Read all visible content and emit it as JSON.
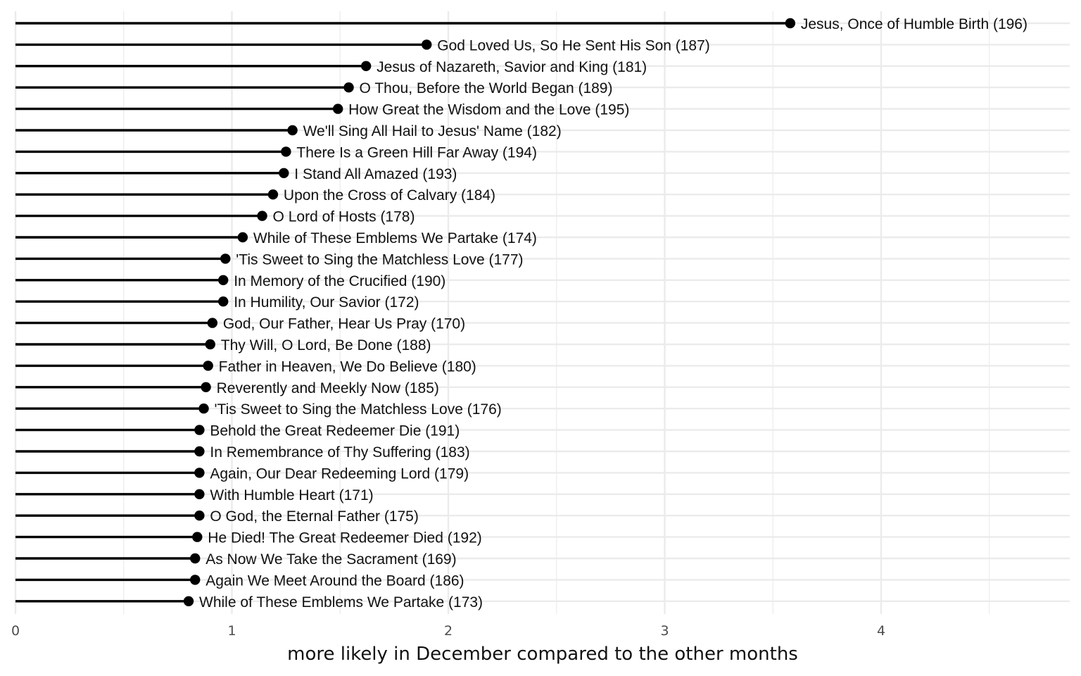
{
  "chart_data": {
    "type": "lollipop",
    "orientation": "horizontal",
    "xlabel": "more likely in December compared to the other months",
    "ylabel": "",
    "title": "",
    "xlim": [
      0,
      4.88
    ],
    "x_ticks": [
      0,
      1,
      2,
      3,
      4
    ],
    "x_tick_labels": [
      "0",
      "1",
      "2",
      "3",
      "4"
    ],
    "grid": true,
    "legend": "none",
    "colors": {
      "stem": "#000000",
      "point": "#000000",
      "grid": "#ebebeb",
      "background": "#ffffff"
    },
    "items": [
      {
        "label": "Jesus, Once of Humble Birth (196)",
        "value": 3.58
      },
      {
        "label": "God Loved Us, So He Sent His Son (187)",
        "value": 1.9
      },
      {
        "label": "Jesus of Nazareth, Savior and King (181)",
        "value": 1.62
      },
      {
        "label": "O Thou, Before the World Began (189)",
        "value": 1.54
      },
      {
        "label": "How Great the Wisdom and the Love (195)",
        "value": 1.49
      },
      {
        "label": "We'll Sing All Hail to Jesus' Name (182)",
        "value": 1.28
      },
      {
        "label": "There Is a Green Hill Far Away (194)",
        "value": 1.25
      },
      {
        "label": "I Stand All Amazed (193)",
        "value": 1.24
      },
      {
        "label": "Upon the Cross of Calvary (184)",
        "value": 1.19
      },
      {
        "label": "O Lord of Hosts (178)",
        "value": 1.14
      },
      {
        "label": "While of These Emblems We Partake (174)",
        "value": 1.05
      },
      {
        "label": "'Tis Sweet to Sing the Matchless Love (177)",
        "value": 0.97
      },
      {
        "label": "In Memory of the Crucified (190)",
        "value": 0.96
      },
      {
        "label": "In Humility, Our Savior (172)",
        "value": 0.96
      },
      {
        "label": "God, Our Father, Hear Us Pray (170)",
        "value": 0.91
      },
      {
        "label": "Thy Will, O Lord, Be Done (188)",
        "value": 0.9
      },
      {
        "label": "Father in Heaven, We Do Believe (180)",
        "value": 0.89
      },
      {
        "label": "Reverently and Meekly Now (185)",
        "value": 0.88
      },
      {
        "label": "'Tis Sweet to Sing the Matchless Love (176)",
        "value": 0.87
      },
      {
        "label": "Behold the Great Redeemer Die (191)",
        "value": 0.85
      },
      {
        "label": "In Remembrance of Thy Suffering (183)",
        "value": 0.85
      },
      {
        "label": "Again, Our Dear Redeeming Lord (179)",
        "value": 0.85
      },
      {
        "label": "With Humble Heart (171)",
        "value": 0.85
      },
      {
        "label": "O God, the Eternal Father (175)",
        "value": 0.85
      },
      {
        "label": "He Died! The Great Redeemer Died (192)",
        "value": 0.84
      },
      {
        "label": "As Now We Take the Sacrament (169)",
        "value": 0.83
      },
      {
        "label": "Again We Meet Around the Board (186)",
        "value": 0.83
      },
      {
        "label": "While of These Emblems We Partake (173)",
        "value": 0.8
      }
    ]
  }
}
